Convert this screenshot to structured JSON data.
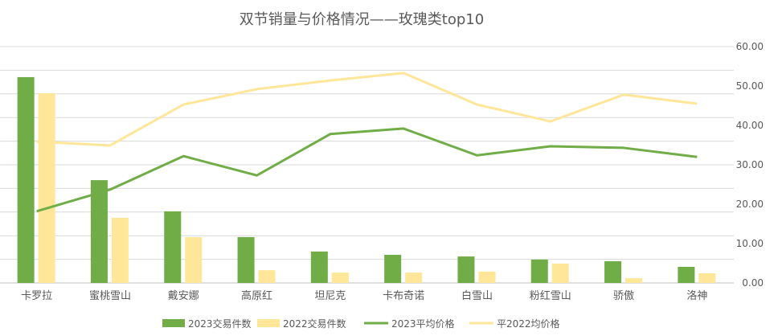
{
  "chart_data": {
    "type": "bar",
    "title": "双节销量与价格情况——玫瑰类top10",
    "categories": [
      "卡罗拉",
      "蜜桃雪山",
      "戴安娜",
      "高原红",
      "坦尼克",
      "卡布奇诺",
      "白雪山",
      "粉红雪山",
      "骄傲",
      "洛神"
    ],
    "primary_axis": {
      "labels_visible": false,
      "gridline_count": 10,
      "ylim": [
        0,
        10
      ]
    },
    "secondary_axis": {
      "ylim": [
        0,
        60
      ],
      "ticks": [
        "0.00",
        "10.00",
        "20.00",
        "30.00",
        "40.00",
        "50.00",
        "60.00"
      ]
    },
    "grid": true,
    "legend_position": "bottom",
    "series": [
      {
        "name": "2023交易件数",
        "type": "bar",
        "axis": "primary",
        "color": "#70AD47",
        "values": [
          8.71,
          4.35,
          3.03,
          1.94,
          1.33,
          1.19,
          1.12,
          0.99,
          0.92,
          0.68
        ]
      },
      {
        "name": "2022交易件数",
        "type": "bar",
        "axis": "primary",
        "color": "#FFE699",
        "values": [
          8.03,
          2.76,
          1.94,
          0.54,
          0.44,
          0.44,
          0.48,
          0.82,
          0.2,
          0.41
        ]
      },
      {
        "name": "2023平均价格",
        "type": "line",
        "axis": "secondary",
        "color": "#70AD47",
        "values": [
          18.2,
          23.7,
          32.2,
          27.3,
          37.8,
          39.2,
          32.4,
          34.7,
          34.3,
          32.0
        ]
      },
      {
        "name": "平2022均价格",
        "type": "line",
        "axis": "secondary",
        "color": "#FFE699",
        "values": [
          35.9,
          34.9,
          45.3,
          49.2,
          51.4,
          53.3,
          45.3,
          41.0,
          47.8,
          45.5
        ]
      }
    ]
  }
}
